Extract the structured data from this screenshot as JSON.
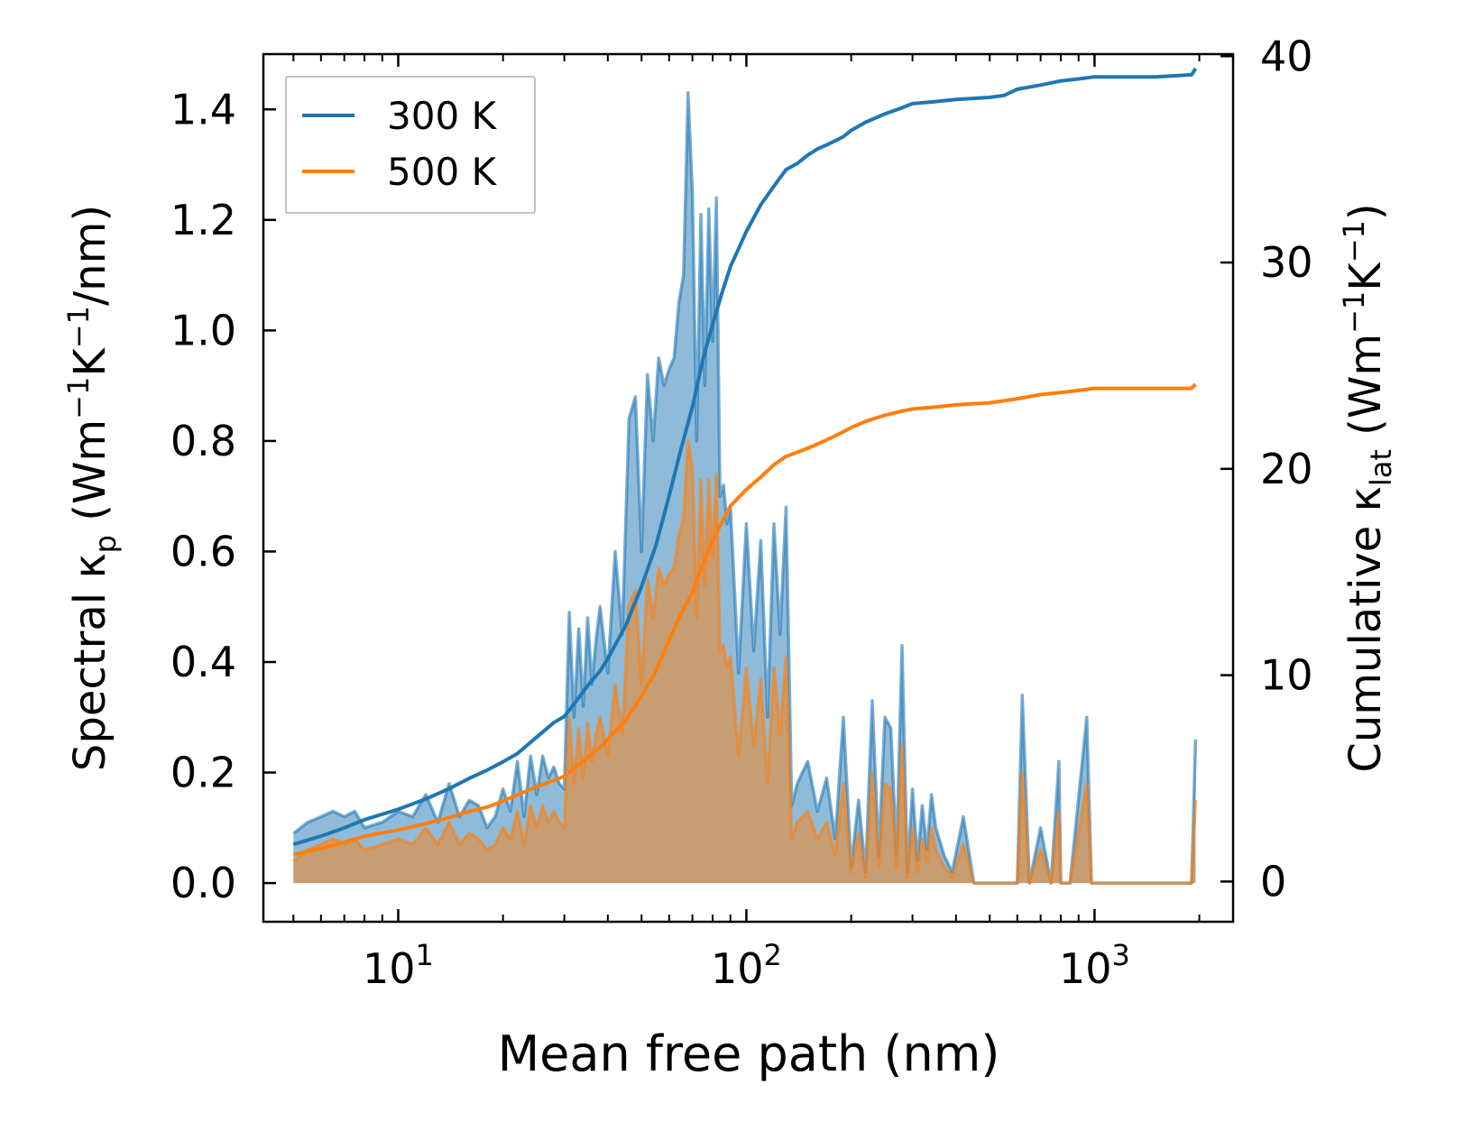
{
  "chart_data": {
    "type": "area+line",
    "xlabel": "Mean free path (nm)",
    "ylabel_left": {
      "prefix": "Spectral κ",
      "sub": "p",
      "unit_open": " (Wm",
      "sup1": "−1",
      "mid": "K",
      "sup2": "−1",
      "unit_close": "/nm)"
    },
    "ylabel_right": {
      "prefix": "Cumulative κ",
      "sub": "lat",
      "unit_open": " (Wm",
      "sup1": "−1",
      "mid": "K",
      "sup2": "−1",
      "unit_close": ")"
    },
    "x_scale": "log",
    "xlim": [
      4.1,
      2500
    ],
    "ylim_left": [
      -0.07,
      1.5
    ],
    "ylim_right": [
      -1.95,
      40.1
    ],
    "x_ticks": [
      {
        "value": 10,
        "base": "10",
        "exp": "1"
      },
      {
        "value": 100,
        "base": "10",
        "exp": "2"
      },
      {
        "value": 1000,
        "base": "10",
        "exp": "3"
      }
    ],
    "y_ticks_left": [
      {
        "value": 0.0,
        "label": "0.0"
      },
      {
        "value": 0.2,
        "label": "0.2"
      },
      {
        "value": 0.4,
        "label": "0.4"
      },
      {
        "value": 0.6,
        "label": "0.6"
      },
      {
        "value": 0.8,
        "label": "0.8"
      },
      {
        "value": 1.0,
        "label": "1.0"
      },
      {
        "value": 1.2,
        "label": "1.2"
      },
      {
        "value": 1.4,
        "label": "1.4"
      }
    ],
    "y_ticks_right": [
      {
        "value": 0,
        "label": "0"
      },
      {
        "value": 10,
        "label": "10"
      },
      {
        "value": 20,
        "label": "20"
      },
      {
        "value": 30,
        "label": "30"
      },
      {
        "value": 40,
        "label": "40"
      }
    ],
    "legend": {
      "position": "upper-left",
      "entries": [
        "300 K",
        "500 K"
      ]
    },
    "colors": {
      "300 K": "#1f77b4",
      "500 K": "#ff7f0e",
      "spectral_300_fill": "#1f77b4",
      "spectral_500_fill": "#ff7f0e"
    },
    "series": [
      {
        "name": "300 K",
        "kind": "spectral",
        "axis": "left",
        "x": [
          5,
          5.5,
          6,
          6.5,
          7,
          7.5,
          8,
          9,
          10,
          11,
          12,
          13,
          14,
          15,
          16,
          17,
          18,
          19,
          20,
          21,
          22,
          23,
          24,
          25,
          26,
          27,
          28,
          29,
          30,
          31,
          32,
          33,
          34,
          35,
          36,
          37,
          38,
          40,
          42,
          44,
          46,
          48,
          50,
          52,
          54,
          56,
          58,
          60,
          62,
          64,
          66,
          68,
          70,
          72,
          74,
          76,
          78,
          80,
          82,
          84,
          86,
          88,
          90,
          95,
          100,
          105,
          110,
          115,
          120,
          125,
          130,
          135,
          140,
          150,
          160,
          170,
          180,
          190,
          200,
          210,
          220,
          230,
          240,
          250,
          260,
          270,
          280,
          290,
          300,
          310,
          320,
          330,
          340,
          350,
          370,
          390,
          420,
          450,
          600,
          620,
          650,
          700,
          750,
          790,
          800,
          850,
          950,
          980,
          1000,
          1050,
          1900,
          1950
        ],
        "y": [
          0.09,
          0.11,
          0.12,
          0.13,
          0.12,
          0.13,
          0.1,
          0.11,
          0.13,
          0.12,
          0.16,
          0.11,
          0.18,
          0.12,
          0.15,
          0.14,
          0.1,
          0.12,
          0.17,
          0.13,
          0.22,
          0.12,
          0.23,
          0.16,
          0.23,
          0.19,
          0.21,
          0.18,
          0.17,
          0.49,
          0.3,
          0.46,
          0.32,
          0.48,
          0.36,
          0.44,
          0.5,
          0.38,
          0.6,
          0.45,
          0.84,
          0.88,
          0.6,
          0.92,
          0.8,
          0.95,
          0.9,
          0.93,
          0.95,
          1.05,
          1.1,
          1.43,
          1.25,
          0.8,
          1.21,
          0.9,
          1.22,
          0.98,
          1.24,
          0.7,
          0.72,
          0.65,
          0.68,
          0.38,
          0.65,
          0.42,
          0.62,
          0.3,
          0.65,
          0.45,
          0.68,
          0.14,
          0.18,
          0.22,
          0.13,
          0.19,
          0.08,
          0.3,
          0.03,
          0.15,
          0.02,
          0.33,
          0.05,
          0.3,
          0.28,
          0.05,
          0.43,
          0.02,
          0.17,
          0.04,
          0.14,
          0.06,
          0.16,
          0.1,
          0.05,
          0.02,
          0.12,
          0.0,
          0.0,
          0.34,
          0.0,
          0.1,
          0.0,
          0.22,
          0.0,
          0.0,
          0.3,
          0.0,
          0.0,
          0.0,
          0.0,
          0.26
        ]
      },
      {
        "name": "500 K",
        "kind": "spectral",
        "axis": "left",
        "x": [
          5,
          5.5,
          6,
          6.5,
          7,
          7.5,
          8,
          9,
          10,
          11,
          12,
          13,
          14,
          15,
          16,
          17,
          18,
          19,
          20,
          21,
          22,
          23,
          24,
          25,
          26,
          27,
          28,
          29,
          30,
          31,
          32,
          33,
          34,
          35,
          36,
          37,
          38,
          40,
          42,
          44,
          46,
          48,
          50,
          52,
          54,
          56,
          58,
          60,
          62,
          64,
          66,
          68,
          70,
          72,
          74,
          76,
          78,
          80,
          82,
          84,
          86,
          88,
          90,
          95,
          100,
          105,
          110,
          115,
          120,
          125,
          130,
          135,
          140,
          150,
          160,
          170,
          180,
          190,
          200,
          210,
          220,
          230,
          240,
          250,
          260,
          270,
          280,
          290,
          300,
          310,
          320,
          330,
          340,
          350,
          370,
          390,
          420,
          450,
          600,
          620,
          650,
          700,
          750,
          790,
          800,
          850,
          950,
          980,
          1000,
          1050,
          1900,
          1950
        ],
        "y": [
          0.04,
          0.06,
          0.07,
          0.08,
          0.07,
          0.08,
          0.06,
          0.07,
          0.08,
          0.07,
          0.1,
          0.07,
          0.11,
          0.07,
          0.09,
          0.08,
          0.06,
          0.07,
          0.1,
          0.08,
          0.13,
          0.07,
          0.14,
          0.1,
          0.14,
          0.11,
          0.13,
          0.11,
          0.1,
          0.3,
          0.18,
          0.28,
          0.19,
          0.29,
          0.22,
          0.27,
          0.3,
          0.23,
          0.36,
          0.27,
          0.5,
          0.53,
          0.36,
          0.55,
          0.48,
          0.57,
          0.54,
          0.56,
          0.57,
          0.63,
          0.66,
          0.8,
          0.75,
          0.48,
          0.73,
          0.54,
          0.73,
          0.59,
          0.74,
          0.42,
          0.43,
          0.39,
          0.41,
          0.23,
          0.39,
          0.25,
          0.37,
          0.18,
          0.39,
          0.27,
          0.41,
          0.08,
          0.11,
          0.13,
          0.08,
          0.11,
          0.05,
          0.18,
          0.02,
          0.09,
          0.01,
          0.2,
          0.03,
          0.18,
          0.17,
          0.03,
          0.25,
          0.01,
          0.1,
          0.02,
          0.08,
          0.04,
          0.1,
          0.06,
          0.03,
          0.01,
          0.07,
          0.0,
          0.0,
          0.2,
          0.0,
          0.06,
          0.0,
          0.13,
          0.0,
          0.0,
          0.18,
          0.0,
          0.0,
          0.0,
          0.0,
          0.15
        ]
      },
      {
        "name": "300 K",
        "kind": "cumulative",
        "axis": "right",
        "x": [
          5,
          6,
          7,
          8,
          10,
          12,
          14,
          16,
          18,
          20,
          22,
          25,
          28,
          30,
          32,
          35,
          38,
          40,
          45,
          50,
          55,
          60,
          65,
          70,
          75,
          80,
          85,
          90,
          100,
          110,
          120,
          130,
          140,
          150,
          160,
          170,
          180,
          190,
          200,
          220,
          250,
          280,
          300,
          350,
          400,
          500,
          550,
          600,
          700,
          800,
          900,
          1000,
          1500,
          1900,
          1950
        ],
        "y": [
          1.8,
          2.2,
          2.6,
          3.0,
          3.5,
          4.0,
          4.5,
          5.0,
          5.4,
          5.8,
          6.2,
          7.0,
          7.7,
          8.0,
          8.6,
          9.5,
          10.2,
          10.8,
          12.4,
          14.3,
          16.3,
          18.7,
          21.0,
          23.0,
          25.3,
          27.0,
          28.5,
          29.8,
          31.5,
          32.8,
          33.7,
          34.5,
          34.8,
          35.2,
          35.5,
          35.7,
          35.9,
          36.1,
          36.4,
          36.8,
          37.2,
          37.5,
          37.7,
          37.8,
          37.9,
          38.0,
          38.1,
          38.4,
          38.6,
          38.8,
          38.9,
          39.0,
          39.0,
          39.1,
          39.4
        ]
      },
      {
        "name": "500 K",
        "kind": "cumulative",
        "axis": "right",
        "x": [
          5,
          6,
          7,
          8,
          10,
          12,
          14,
          16,
          18,
          20,
          22,
          25,
          28,
          30,
          32,
          35,
          38,
          40,
          45,
          50,
          55,
          60,
          65,
          70,
          75,
          80,
          85,
          90,
          100,
          110,
          120,
          130,
          140,
          150,
          160,
          170,
          180,
          190,
          200,
          220,
          250,
          280,
          300,
          350,
          400,
          500,
          550,
          600,
          700,
          800,
          900,
          1000,
          1500,
          1900,
          1950
        ],
        "y": [
          1.3,
          1.6,
          1.9,
          2.2,
          2.5,
          2.8,
          3.1,
          3.4,
          3.6,
          3.9,
          4.2,
          4.6,
          4.9,
          5.1,
          5.5,
          6.0,
          6.5,
          6.9,
          7.8,
          9.0,
          10.2,
          11.7,
          13.0,
          14.0,
          15.4,
          16.5,
          17.4,
          18.2,
          19.0,
          19.6,
          20.2,
          20.6,
          20.8,
          21.0,
          21.2,
          21.4,
          21.6,
          21.8,
          22.0,
          22.3,
          22.6,
          22.8,
          22.9,
          23.0,
          23.1,
          23.2,
          23.3,
          23.4,
          23.6,
          23.7,
          23.8,
          23.9,
          23.9,
          23.9,
          24.1
        ]
      }
    ]
  }
}
